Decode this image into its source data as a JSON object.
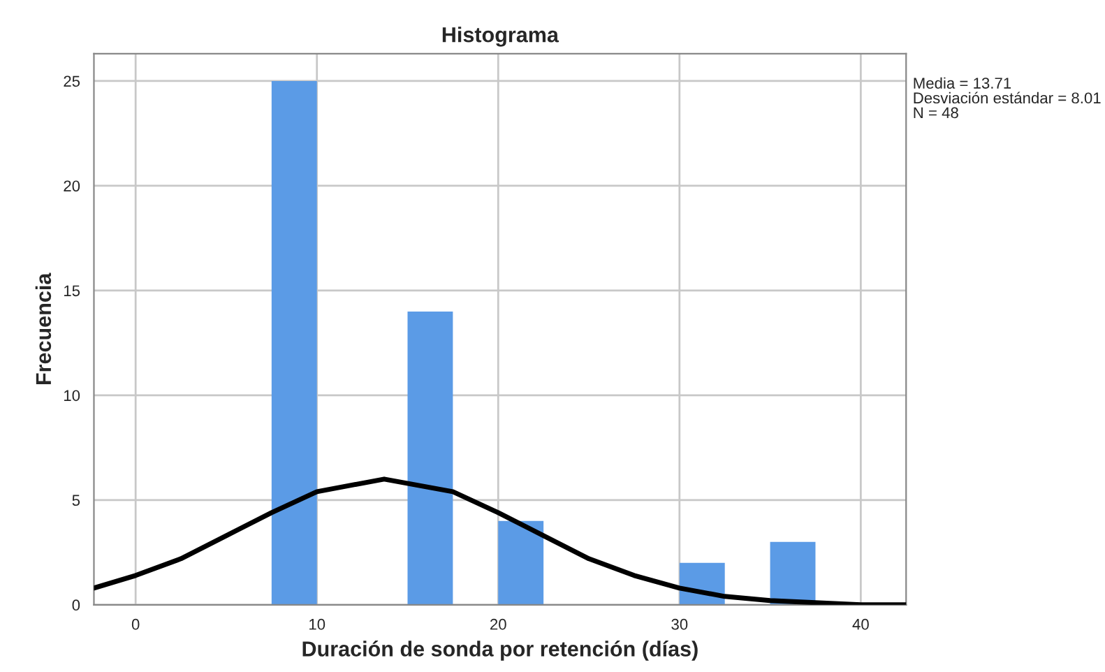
{
  "chart_data": {
    "type": "histogram",
    "title": "Histograma",
    "xlabel": "Duración de sonda por retención (días)",
    "ylabel": "Frecuencia",
    "bins": [
      7.5,
      10,
      12.5,
      15,
      17.5,
      20,
      22.5,
      25,
      27.5,
      30,
      32.5,
      35,
      37.5
    ],
    "values": [
      25,
      0,
      0,
      14,
      0,
      4,
      0,
      0,
      0,
      2,
      0,
      3
    ],
    "color": "#5b9be6",
    "series": [
      {
        "type": "line",
        "color": "#000000",
        "x": [
          -2.3,
          0,
          2.5,
          5,
          7.5,
          10,
          13.71,
          17.5,
          20,
          22.5,
          25,
          27.5,
          30,
          32.5,
          35,
          37.5,
          40,
          42.5
        ],
        "values": [
          0.8,
          1.4,
          2.2,
          3.3,
          4.4,
          5.4,
          6.0,
          5.4,
          4.4,
          3.3,
          2.2,
          1.4,
          0.8,
          0.4,
          0.2,
          0.1,
          0.0,
          0.0
        ]
      }
    ],
    "xlim": [
      -2.3,
      42.5
    ],
    "ylim": [
      0,
      26.3
    ],
    "xticks": [
      0,
      10,
      20,
      30,
      40
    ],
    "yticks": [
      0,
      5,
      10,
      15,
      20,
      25
    ],
    "grid": true,
    "annotations": [
      "Media = 13.71",
      "Desviación estándar = 8.01",
      "N = 48"
    ]
  }
}
